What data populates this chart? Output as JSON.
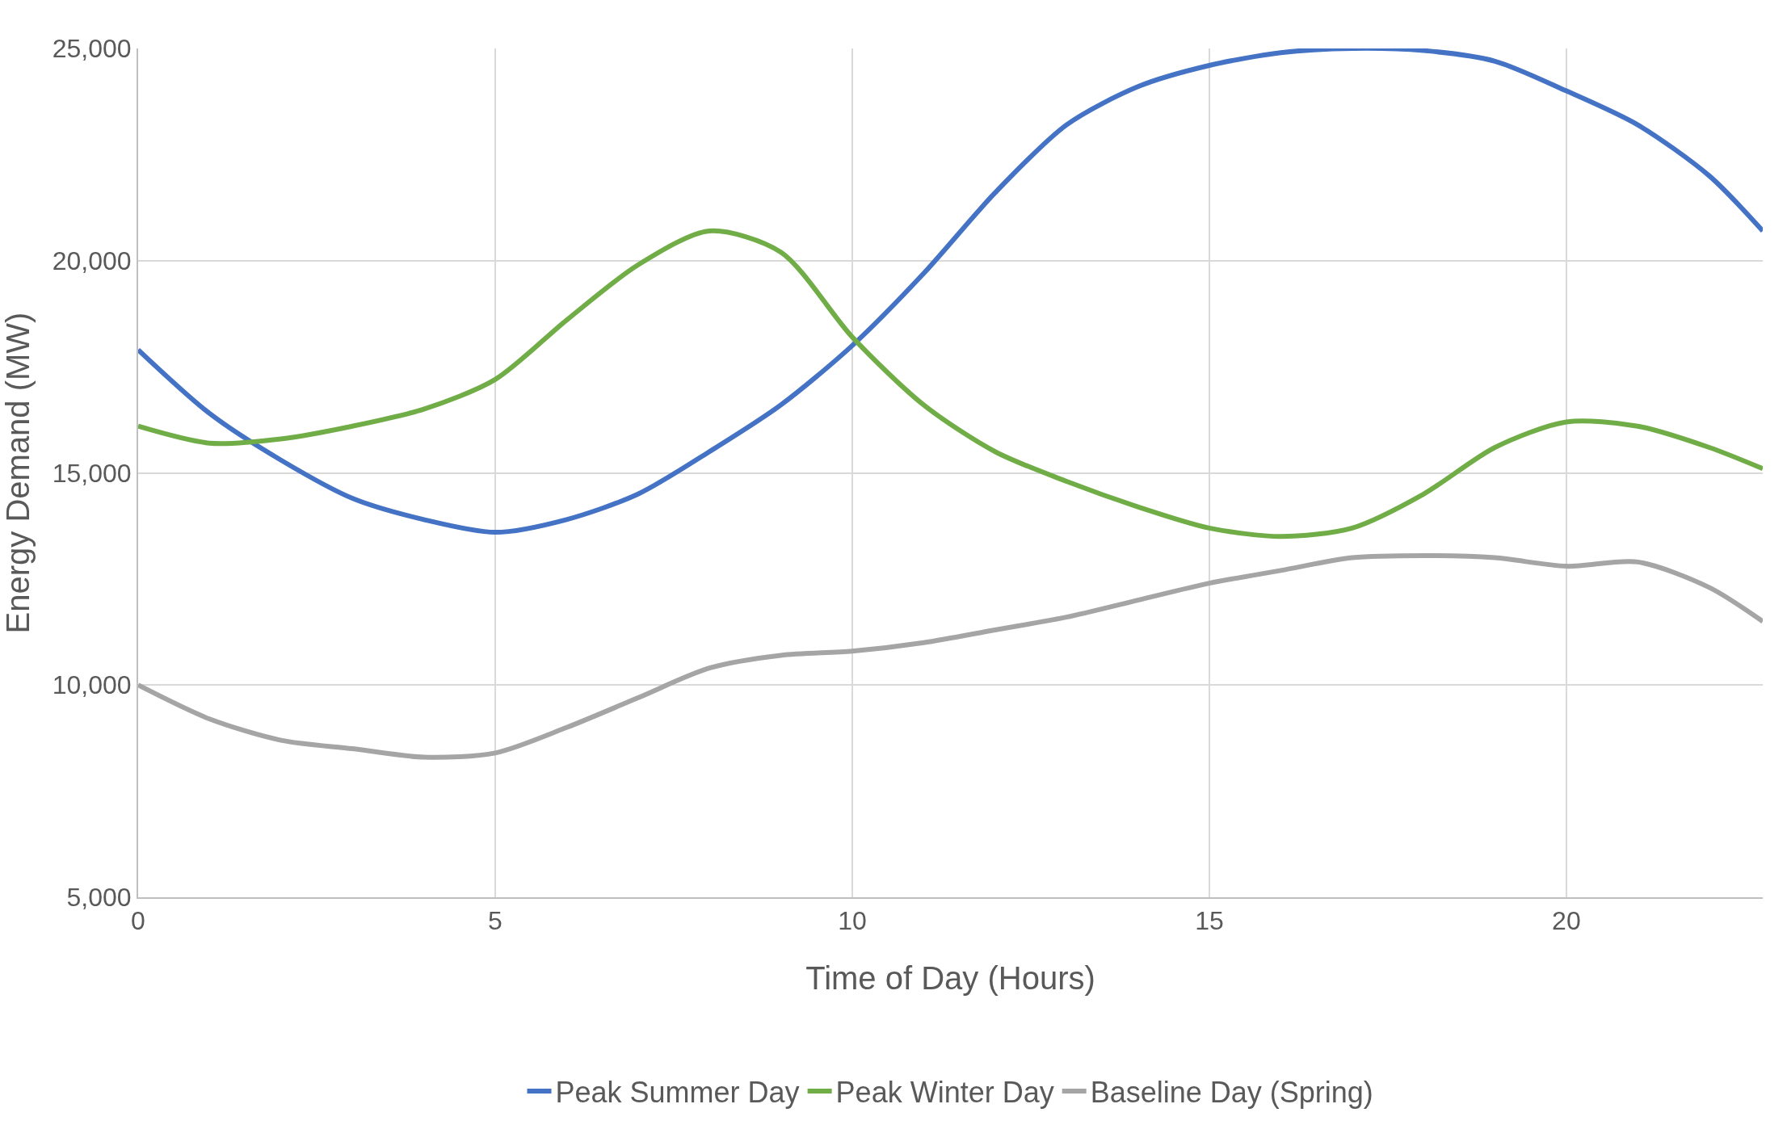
{
  "chart_data": {
    "type": "line",
    "xlabel": "Time of Day (Hours)",
    "ylabel": "Energy Demand (MW)",
    "x": [
      0,
      1,
      2,
      3,
      4,
      5,
      6,
      7,
      8,
      9,
      10,
      11,
      12,
      13,
      14,
      15,
      16,
      17,
      18,
      19,
      20,
      21,
      22,
      22.75
    ],
    "series": [
      {
        "name": "Peak Summer Day",
        "color": "#4472c4",
        "values": [
          17900,
          16400,
          15300,
          14400,
          13900,
          13600,
          13900,
          14500,
          15500,
          16600,
          18000,
          19700,
          21600,
          23200,
          24100,
          24600,
          24900,
          25000,
          24950,
          24700,
          24000,
          23200,
          22000,
          20700
        ]
      },
      {
        "name": "Peak Winter Day",
        "color": "#70ad47",
        "values": [
          16100,
          15700,
          15800,
          16100,
          16500,
          17200,
          18600,
          19900,
          20700,
          20200,
          18200,
          16600,
          15500,
          14800,
          14200,
          13700,
          13500,
          13700,
          14500,
          15600,
          16200,
          16100,
          15600,
          15100
        ]
      },
      {
        "name": "Baseline Day (Spring)",
        "color": "#a5a5a5",
        "values": [
          10000,
          9200,
          8700,
          8500,
          8300,
          8400,
          9000,
          9700,
          10400,
          10700,
          10800,
          11000,
          11300,
          11600,
          12000,
          12400,
          12700,
          13000,
          13050,
          13000,
          12800,
          12900,
          12300,
          11500
        ]
      }
    ],
    "xlim": [
      0,
      22.75
    ],
    "xticks": [
      0,
      5,
      10,
      15,
      20
    ],
    "ylim": [
      5000,
      25000
    ],
    "yticks": [
      {
        "value": 5000,
        "label": "5,000"
      },
      {
        "value": 10000,
        "label": "10,000"
      },
      {
        "value": 15000,
        "label": "15,000"
      },
      {
        "value": 20000,
        "label": "20,000"
      },
      {
        "value": 25000,
        "label": "25,000"
      }
    ],
    "grid": true,
    "legend": "bottom",
    "marker": "none",
    "line_style": "solid"
  }
}
